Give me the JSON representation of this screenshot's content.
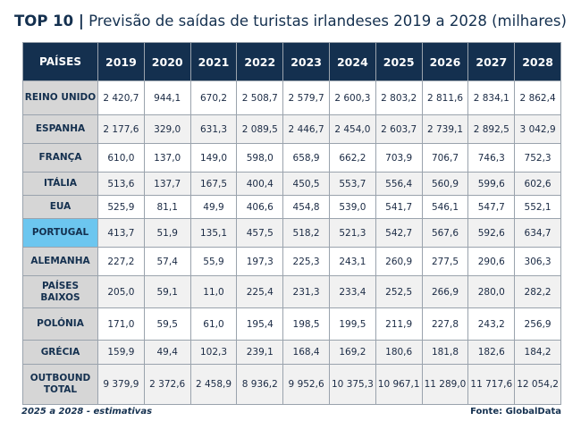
{
  "title": {
    "prefix": "TOP 10 |",
    "text": "Previsão de saídas de turistas irlandeses 2019 a 2028 (milhares)"
  },
  "table": {
    "header_label": "PAÍSES",
    "years": [
      "2019",
      "2020",
      "2021",
      "2022",
      "2023",
      "2024",
      "2025",
      "2026",
      "2027",
      "2028"
    ],
    "rows": [
      {
        "country": "REINO UNIDO",
        "values": [
          "2 420,7",
          "944,1",
          "670,2",
          "2 508,7",
          "2 579,7",
          "2 600,3",
          "2 803,2",
          "2 811,6",
          "2 834,1",
          "2 862,4"
        ]
      },
      {
        "country": "ESPANHA",
        "values": [
          "2 177,6",
          "329,0",
          "631,3",
          "2 089,5",
          "2 446,7",
          "2 454,0",
          "2 603,7",
          "2 739,1",
          "2 892,5",
          "3 042,9"
        ]
      },
      {
        "country": "FRANÇA",
        "values": [
          "610,0",
          "137,0",
          "149,0",
          "598,0",
          "658,9",
          "662,2",
          "703,9",
          "706,7",
          "746,3",
          "752,3"
        ]
      },
      {
        "country": "ITÁLIA",
        "values": [
          "513,6",
          "137,7",
          "167,5",
          "400,4",
          "450,5",
          "553,7",
          "556,4",
          "560,9",
          "599,6",
          "602,6"
        ]
      },
      {
        "country": "EUA",
        "values": [
          "525,9",
          "81,1",
          "49,9",
          "406,6",
          "454,8",
          "539,0",
          "541,7",
          "546,1",
          "547,7",
          "552,1"
        ]
      },
      {
        "country": "PORTUGAL",
        "highlight": true,
        "values": [
          "413,7",
          "51,9",
          "135,1",
          "457,5",
          "518,2",
          "521,3",
          "542,7",
          "567,6",
          "592,6",
          "634,7"
        ]
      },
      {
        "country": "ALEMANHA",
        "values": [
          "227,2",
          "57,4",
          "55,9",
          "197,3",
          "225,3",
          "243,1",
          "260,9",
          "277,5",
          "290,6",
          "306,3"
        ]
      },
      {
        "country": "PAÍSES BAIXOS",
        "values": [
          "205,0",
          "59,1",
          "11,0",
          "225,4",
          "231,3",
          "233,4",
          "252,5",
          "266,9",
          "280,0",
          "282,2"
        ]
      },
      {
        "country": "POLÓNIA",
        "values": [
          "171,0",
          "59,5",
          "61,0",
          "195,4",
          "198,5",
          "199,5",
          "211,9",
          "227,8",
          "243,2",
          "256,9"
        ]
      },
      {
        "country": "GRÉCIA",
        "values": [
          "159,9",
          "49,4",
          "102,3",
          "239,1",
          "168,4",
          "169,2",
          "180,6",
          "181,8",
          "182,6",
          "184,2"
        ]
      },
      {
        "country": "OUTBOUND TOTAL",
        "values": [
          "9 379,9",
          "2 372,6",
          "2 458,9",
          "8 936,2",
          "9 952,6",
          "10 375,3",
          "10 967,1",
          "11 289,0",
          "11 717,6",
          "12 054,2"
        ]
      }
    ]
  },
  "footer": {
    "note": "2025 a 2028 - estimativas",
    "source": "Fonte: GlobalData"
  },
  "colors": {
    "header": "#14304f",
    "highlight": "#6cc6ef",
    "country_bg": "#d6d6d6"
  }
}
